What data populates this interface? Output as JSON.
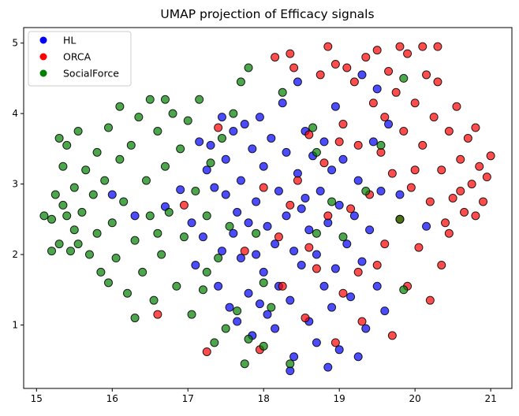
{
  "chart_data": {
    "type": "scatter",
    "title": "UMAP projection of Efficacy signals",
    "xlabel": "",
    "ylabel": "",
    "xlim": [
      14.83,
      21.28
    ],
    "ylim": [
      0.1,
      5.22
    ],
    "xticks": [
      15,
      16,
      17,
      18,
      19,
      20,
      21
    ],
    "yticks": [
      1,
      2,
      3,
      4,
      5
    ],
    "grid": false,
    "legend_position": "top-left",
    "series": [
      {
        "name": "HL",
        "color": "#0000ff",
        "points": [
          [
            16.0,
            2.85
          ],
          [
            16.3,
            2.55
          ],
          [
            16.7,
            2.68
          ],
          [
            16.9,
            2.92
          ],
          [
            17.05,
            2.45
          ],
          [
            17.1,
            1.85
          ],
          [
            17.2,
            2.25
          ],
          [
            17.25,
            3.2
          ],
          [
            17.3,
            3.55
          ],
          [
            17.35,
            2.95
          ],
          [
            17.4,
            1.55
          ],
          [
            17.45,
            2.05
          ],
          [
            17.5,
            3.35
          ],
          [
            17.5,
            2.85
          ],
          [
            17.55,
            1.25
          ],
          [
            17.6,
            2.3
          ],
          [
            17.6,
            3.75
          ],
          [
            17.65,
            2.6
          ],
          [
            17.7,
            1.95
          ],
          [
            17.7,
            3.05
          ],
          [
            17.75,
            3.85
          ],
          [
            17.8,
            2.45
          ],
          [
            17.8,
            1.45
          ],
          [
            17.85,
            3.5
          ],
          [
            17.9,
            2.0
          ],
          [
            17.9,
            2.75
          ],
          [
            17.95,
            3.95
          ],
          [
            18.0,
            1.75
          ],
          [
            18.0,
            3.25
          ],
          [
            18.05,
            2.4
          ],
          [
            18.05,
            1.15
          ],
          [
            18.1,
            3.65
          ],
          [
            18.15,
            2.15
          ],
          [
            18.2,
            2.9
          ],
          [
            18.2,
            1.55
          ],
          [
            18.25,
            4.15
          ],
          [
            18.3,
            2.55
          ],
          [
            18.3,
            3.45
          ],
          [
            18.35,
            1.35
          ],
          [
            18.4,
            2.05
          ],
          [
            18.4,
            0.55
          ],
          [
            18.45,
            3.15
          ],
          [
            18.5,
            2.65
          ],
          [
            18.5,
            1.85
          ],
          [
            18.55,
            3.75
          ],
          [
            18.6,
            2.35
          ],
          [
            18.6,
            1.05
          ],
          [
            18.65,
            3.4
          ],
          [
            18.7,
            2.0
          ],
          [
            18.7,
            0.75
          ],
          [
            18.75,
            2.9
          ],
          [
            18.8,
            1.55
          ],
          [
            18.8,
            3.6
          ],
          [
            18.85,
            2.45
          ],
          [
            18.9,
            1.25
          ],
          [
            18.9,
            3.2
          ],
          [
            18.95,
            1.8
          ],
          [
            19.0,
            2.7
          ],
          [
            19.0,
            0.65
          ],
          [
            19.05,
            3.35
          ],
          [
            19.1,
            2.15
          ],
          [
            19.15,
            1.4
          ],
          [
            19.2,
            2.55
          ],
          [
            19.25,
            3.05
          ],
          [
            19.3,
            1.9
          ],
          [
            19.35,
            0.95
          ],
          [
            19.4,
            2.35
          ],
          [
            19.45,
            3.6
          ],
          [
            19.5,
            1.55
          ],
          [
            19.5,
            4.35
          ],
          [
            19.55,
            2.9
          ],
          [
            19.6,
            1.2
          ],
          [
            19.65,
            3.85
          ],
          [
            17.15,
            3.6
          ],
          [
            17.45,
            3.95
          ],
          [
            17.65,
            1.05
          ],
          [
            17.85,
            0.85
          ],
          [
            18.15,
            0.95
          ],
          [
            18.35,
            0.35
          ],
          [
            18.85,
            0.4
          ],
          [
            19.25,
            0.55
          ],
          [
            17.95,
            1.3
          ],
          [
            18.55,
            2.8
          ],
          [
            19.8,
            2.85
          ],
          [
            20.15,
            2.4
          ],
          [
            18.45,
            4.45
          ],
          [
            18.95,
            4.1
          ],
          [
            19.3,
            4.55
          ]
        ]
      },
      {
        "name": "ORCA",
        "color": "#ff0000",
        "points": [
          [
            16.6,
            1.15
          ],
          [
            16.95,
            2.7
          ],
          [
            17.25,
            0.62
          ],
          [
            17.4,
            3.8
          ],
          [
            17.75,
            2.05
          ],
          [
            17.95,
            0.65
          ],
          [
            18.15,
            4.8
          ],
          [
            18.2,
            2.25
          ],
          [
            18.35,
            4.85
          ],
          [
            18.4,
            4.65
          ],
          [
            18.45,
            3.05
          ],
          [
            18.6,
            3.7
          ],
          [
            18.7,
            1.8
          ],
          [
            18.75,
            4.55
          ],
          [
            18.85,
            2.55
          ],
          [
            18.85,
            4.95
          ],
          [
            18.95,
            4.7
          ],
          [
            19.05,
            3.85
          ],
          [
            19.05,
            1.45
          ],
          [
            19.1,
            4.65
          ],
          [
            19.15,
            2.65
          ],
          [
            19.2,
            4.45
          ],
          [
            19.25,
            3.55
          ],
          [
            19.3,
            1.05
          ],
          [
            19.35,
            4.8
          ],
          [
            19.4,
            2.85
          ],
          [
            19.45,
            4.15
          ],
          [
            19.5,
            1.85
          ],
          [
            19.5,
            4.9
          ],
          [
            19.55,
            3.45
          ],
          [
            19.6,
            2.15
          ],
          [
            19.65,
            4.6
          ],
          [
            19.7,
            0.85
          ],
          [
            19.7,
            3.15
          ],
          [
            19.75,
            4.3
          ],
          [
            19.8,
            2.5
          ],
          [
            19.85,
            3.75
          ],
          [
            19.9,
            1.55
          ],
          [
            19.9,
            4.85
          ],
          [
            19.95,
            2.95
          ],
          [
            20.0,
            4.15
          ],
          [
            20.05,
            2.1
          ],
          [
            20.1,
            3.55
          ],
          [
            20.15,
            4.55
          ],
          [
            20.2,
            2.75
          ],
          [
            20.2,
            1.35
          ],
          [
            20.25,
            3.95
          ],
          [
            20.3,
            4.45
          ],
          [
            20.35,
            3.2
          ],
          [
            20.4,
            2.45
          ],
          [
            20.45,
            3.75
          ],
          [
            20.5,
            2.8
          ],
          [
            20.55,
            4.1
          ],
          [
            20.6,
            3.35
          ],
          [
            20.65,
            2.6
          ],
          [
            20.7,
            3.65
          ],
          [
            20.75,
            3.0
          ],
          [
            20.8,
            2.55
          ],
          [
            20.85,
            3.25
          ],
          [
            20.9,
            2.75
          ],
          [
            20.95,
            3.1
          ],
          [
            21.0,
            3.4
          ],
          [
            20.3,
            4.95
          ],
          [
            20.1,
            4.95
          ],
          [
            19.8,
            4.95
          ],
          [
            18.95,
            0.75
          ],
          [
            19.25,
            1.75
          ],
          [
            18.55,
            1.1
          ],
          [
            18.0,
            2.95
          ],
          [
            18.35,
            2.7
          ],
          [
            18.6,
            2.1
          ],
          [
            19.0,
            3.6
          ],
          [
            20.45,
            2.3
          ],
          [
            20.6,
            2.9
          ],
          [
            20.0,
            3.2
          ],
          [
            20.35,
            1.85
          ],
          [
            19.6,
            3.95
          ],
          [
            18.25,
            1.55
          ],
          [
            18.8,
            3.3
          ],
          [
            20.8,
            3.8
          ]
        ]
      },
      {
        "name": "SocialForce",
        "color": "#008000",
        "points": [
          [
            15.1,
            2.55
          ],
          [
            15.2,
            2.5
          ],
          [
            15.25,
            2.85
          ],
          [
            15.3,
            2.15
          ],
          [
            15.35,
            3.25
          ],
          [
            15.35,
            2.7
          ],
          [
            15.4,
            3.55
          ],
          [
            15.45,
            2.05
          ],
          [
            15.5,
            2.95
          ],
          [
            15.5,
            2.35
          ],
          [
            15.55,
            3.75
          ],
          [
            15.6,
            2.6
          ],
          [
            15.65,
            3.2
          ],
          [
            15.7,
            2.0
          ],
          [
            15.75,
            2.85
          ],
          [
            15.8,
            3.45
          ],
          [
            15.8,
            2.3
          ],
          [
            15.85,
            1.75
          ],
          [
            15.9,
            3.05
          ],
          [
            15.95,
            3.8
          ],
          [
            16.0,
            2.45
          ],
          [
            16.05,
            1.95
          ],
          [
            16.1,
            3.35
          ],
          [
            16.1,
            4.1
          ],
          [
            16.15,
            2.75
          ],
          [
            16.2,
            1.45
          ],
          [
            16.25,
            3.55
          ],
          [
            16.3,
            2.2
          ],
          [
            16.35,
            3.95
          ],
          [
            16.4,
            1.75
          ],
          [
            16.45,
            3.05
          ],
          [
            16.5,
            2.55
          ],
          [
            16.5,
            4.2
          ],
          [
            16.55,
            1.35
          ],
          [
            16.6,
            3.75
          ],
          [
            16.65,
            2.0
          ],
          [
            16.7,
            3.25
          ],
          [
            16.75,
            2.6
          ],
          [
            16.8,
            4.0
          ],
          [
            16.85,
            1.55
          ],
          [
            16.9,
            3.5
          ],
          [
            16.95,
            2.25
          ],
          [
            17.0,
            3.9
          ],
          [
            17.05,
            1.15
          ],
          [
            17.1,
            2.9
          ],
          [
            17.15,
            4.2
          ],
          [
            17.2,
            1.5
          ],
          [
            17.25,
            2.55
          ],
          [
            17.3,
            3.3
          ],
          [
            17.35,
            0.75
          ],
          [
            17.4,
            1.95
          ],
          [
            17.45,
            3.65
          ],
          [
            17.5,
            0.95
          ],
          [
            17.55,
            2.4
          ],
          [
            17.6,
            4.0
          ],
          [
            17.65,
            1.2
          ],
          [
            17.7,
            4.45
          ],
          [
            17.75,
            0.45
          ],
          [
            17.8,
            4.65
          ],
          [
            17.9,
            2.3
          ],
          [
            18.0,
            1.6
          ],
          [
            18.1,
            1.25
          ],
          [
            18.25,
            4.3
          ],
          [
            18.65,
            3.8
          ],
          [
            18.7,
            2.3
          ],
          [
            18.7,
            3.45
          ],
          [
            18.9,
            2.75
          ],
          [
            19.05,
            2.25
          ],
          [
            19.35,
            2.9
          ],
          [
            19.55,
            3.55
          ],
          [
            19.8,
            2.5
          ],
          [
            19.85,
            4.5
          ],
          [
            19.85,
            1.5
          ],
          [
            15.2,
            2.05
          ],
          [
            15.4,
            2.55
          ],
          [
            15.3,
            3.65
          ],
          [
            15.55,
            2.15
          ],
          [
            15.95,
            1.6
          ],
          [
            16.3,
            1.1
          ],
          [
            16.6,
            2.3
          ],
          [
            17.8,
            0.8
          ],
          [
            18.0,
            0.7
          ],
          [
            18.35,
            0.45
          ],
          [
            17.25,
            1.75
          ],
          [
            16.7,
            4.2
          ]
        ]
      }
    ]
  }
}
